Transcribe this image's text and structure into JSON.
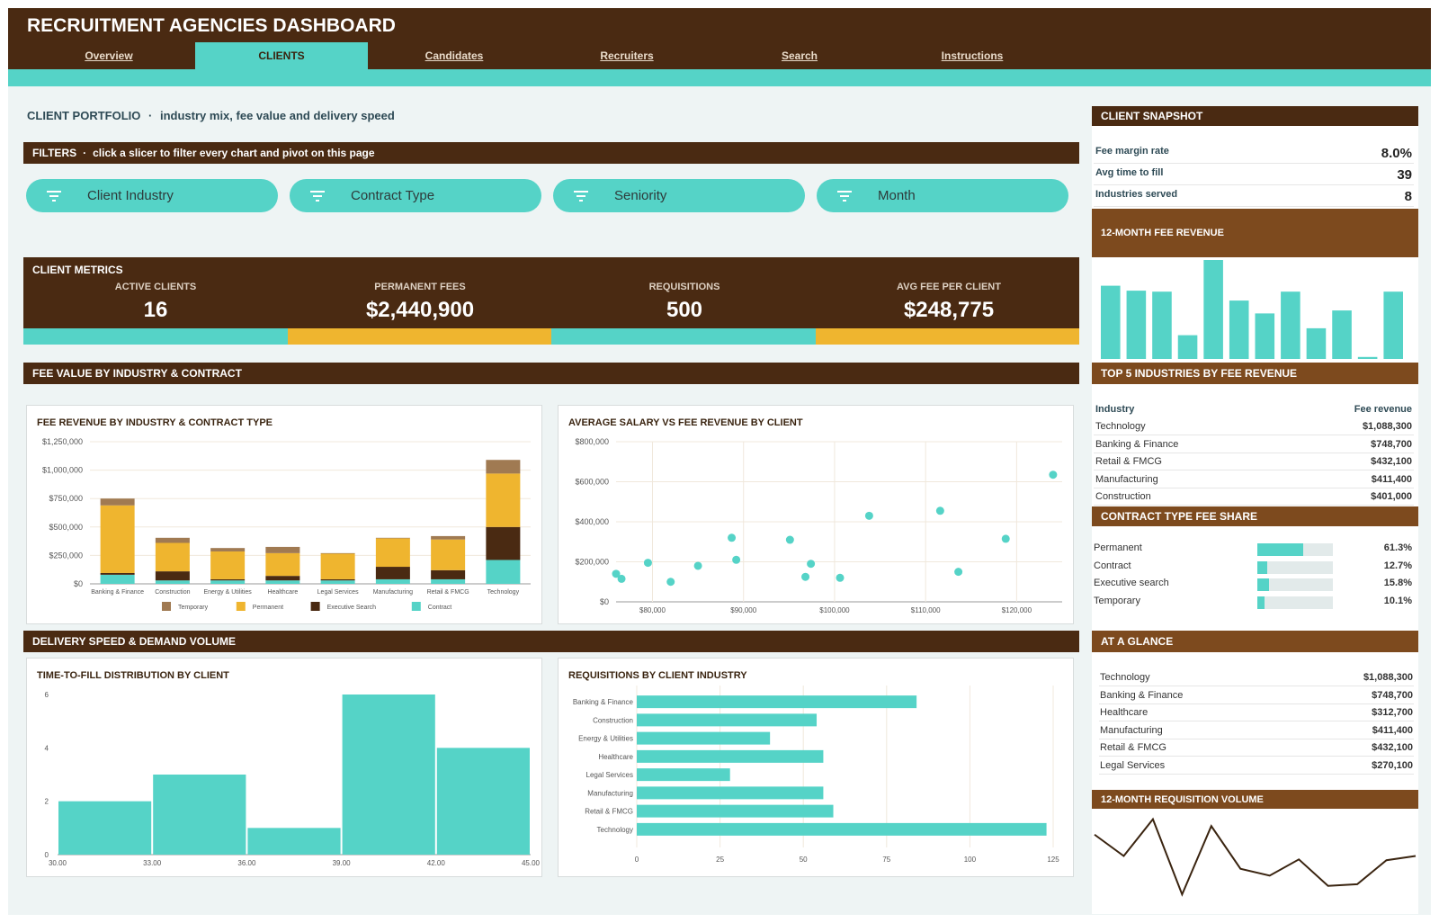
{
  "app_title": "RECRUITMENT AGENCIES DASHBOARD",
  "tabs": [
    {
      "label": "Overview",
      "active": false
    },
    {
      "label": "CLIENTS",
      "active": true
    },
    {
      "label": "Candidates",
      "active": false
    },
    {
      "label": "Recruiters",
      "active": false
    },
    {
      "label": "Search",
      "active": false
    },
    {
      "label": "Instructions",
      "active": false
    }
  ],
  "page_heading": {
    "title": "CLIENT PORTFOLIO",
    "sep": "·",
    "subtitle": "industry mix, fee value and delivery speed"
  },
  "filters": {
    "title": "FILTERS",
    "sep": "·",
    "hint": "click a slicer to filter every chart and pivot on this page",
    "slicers": [
      "Client Industry",
      "Contract Type",
      "Seniority",
      "Month"
    ]
  },
  "metrics": {
    "title": "CLIENT METRICS",
    "items": [
      {
        "label": "ACTIVE CLIENTS",
        "value": "16"
      },
      {
        "label": "PERMANENT FEES",
        "value": "$2,440,900"
      },
      {
        "label": "REQUISITIONS",
        "value": "500"
      },
      {
        "label": "AVG FEE PER CLIENT",
        "value": "$248,775"
      }
    ]
  },
  "section_fee": "FEE VALUE BY INDUSTRY & CONTRACT",
  "section_delivery": "DELIVERY SPEED & DEMAND VOLUME",
  "colors": {
    "brown": "#4a2a12",
    "teal": "#55d3c7",
    "gold": "#efb52f",
    "tan": "#a07a52"
  },
  "chart_data": [
    {
      "type": "bar",
      "stacked": true,
      "title": "FEE REVENUE BY INDUSTRY & CONTRACT TYPE",
      "categories": [
        "Banking & Finance",
        "Construction",
        "Energy & Utilities",
        "Healthcare",
        "Legal Services",
        "Manufacturing",
        "Retail & FMCG",
        "Technology"
      ],
      "yticks": [
        "$0",
        "$250,000",
        "$500,000",
        "$750,000",
        "$1,000,000",
        "$1,250,000"
      ],
      "ylim": [
        0,
        1250000
      ],
      "series": [
        {
          "name": "Contract",
          "color": "#55d3c7",
          "values": [
            80000,
            30000,
            30000,
            30000,
            30000,
            40000,
            40000,
            210000
          ]
        },
        {
          "name": "Executive Search",
          "color": "#4a2a12",
          "values": [
            15000,
            80000,
            10000,
            40000,
            10000,
            110000,
            80000,
            290000
          ]
        },
        {
          "name": "Permanent",
          "color": "#efb52f",
          "values": [
            595000,
            250000,
            245000,
            200000,
            225000,
            250000,
            270000,
            470000
          ]
        },
        {
          "name": "Temporary",
          "color": "#a07a52",
          "values": [
            60000,
            45000,
            30000,
            55000,
            5000,
            5000,
            30000,
            120000
          ]
        }
      ],
      "legend": [
        "Temporary",
        "Permanent",
        "Executive Search",
        "Contract"
      ]
    },
    {
      "type": "scatter",
      "title": "AVERAGE SALARY VS FEE REVENUE BY CLIENT",
      "xticks": [
        "$80,000",
        "$90,000",
        "$100,000",
        "$110,000",
        "$120,000"
      ],
      "xlim": [
        76000,
        125000
      ],
      "yticks": [
        "$0",
        "$200,000",
        "$400,000",
        "$600,000",
        "$800,000"
      ],
      "ylim": [
        0,
        800000
      ],
      "points": [
        [
          76000,
          140000
        ],
        [
          76600,
          115000
        ],
        [
          79500,
          195000
        ],
        [
          82000,
          100000
        ],
        [
          85000,
          180000
        ],
        [
          88700,
          320000
        ],
        [
          89200,
          210000
        ],
        [
          95100,
          310000
        ],
        [
          96800,
          125000
        ],
        [
          97400,
          190000
        ],
        [
          100600,
          120000
        ],
        [
          103800,
          430000
        ],
        [
          111600,
          455000
        ],
        [
          113600,
          150000
        ],
        [
          118800,
          315000
        ],
        [
          124000,
          635000
        ]
      ]
    },
    {
      "type": "bar",
      "title": "TIME-TO-FILL DISTRIBUTION BY CLIENT",
      "categories": [
        "30.00-33.00",
        "33.00-36.00",
        "36.00-39.00",
        "39.00-42.00",
        "42.00-45.00"
      ],
      "xticks": [
        "30.00",
        "33.00",
        "36.00",
        "39.00",
        "42.00",
        "45.00"
      ],
      "yticks": [
        "0",
        "2",
        "4",
        "6"
      ],
      "ylim": [
        0,
        6
      ],
      "values": [
        2,
        3,
        1,
        6,
        4
      ]
    },
    {
      "type": "bar",
      "orientation": "horizontal",
      "title": "REQUISITIONS BY CLIENT INDUSTRY",
      "categories": [
        "Banking & Finance",
        "Construction",
        "Energy & Utilities",
        "Healthcare",
        "Legal Services",
        "Manufacturing",
        "Retail & FMCG",
        "Technology"
      ],
      "values": [
        84,
        54,
        40,
        56,
        28,
        56,
        59,
        123
      ],
      "xticks": [
        "0",
        "25",
        "50",
        "75",
        "100",
        "125"
      ],
      "xlim": [
        0,
        125
      ]
    },
    {
      "type": "bar",
      "title": "12-MONTH FEE REVENUE",
      "values": [
        0.74,
        0.69,
        0.68,
        0.24,
        1.0,
        0.59,
        0.46,
        0.68,
        0.31,
        0.49,
        0.02,
        0.68
      ]
    },
    {
      "type": "line",
      "title": "12-MONTH REQUISITION VOLUME",
      "values": [
        0.75,
        0.5,
        0.93,
        0.05,
        0.85,
        0.35,
        0.27,
        0.46,
        0.15,
        0.17,
        0.45,
        0.5
      ]
    }
  ],
  "snapshot": {
    "title": "CLIENT SNAPSHOT",
    "rows": [
      {
        "label": "Fee margin rate",
        "value": "8.0%"
      },
      {
        "label": "Avg time to fill",
        "value": "39"
      },
      {
        "label": "Industries served",
        "value": "8"
      }
    ]
  },
  "top5": {
    "title": "TOP 5 INDUSTRIES BY FEE REVENUE",
    "col1": "Industry",
    "col2": "Fee revenue",
    "rows": [
      {
        "label": "Technology",
        "value": "$1,088,300"
      },
      {
        "label": "Banking & Finance",
        "value": "$748,700"
      },
      {
        "label": "Retail & FMCG",
        "value": "$432,100"
      },
      {
        "label": "Manufacturing",
        "value": "$411,400"
      },
      {
        "label": "Construction",
        "value": "$401,000"
      }
    ]
  },
  "contract_share": {
    "title": "CONTRACT TYPE FEE SHARE",
    "rows": [
      {
        "label": "Permanent",
        "pct": "61.3%",
        "frac": 0.613
      },
      {
        "label": "Contract",
        "pct": "12.7%",
        "frac": 0.127
      },
      {
        "label": "Executive search",
        "pct": "15.8%",
        "frac": 0.158
      },
      {
        "label": "Temporary",
        "pct": "10.1%",
        "frac": 0.101
      }
    ]
  },
  "glance": {
    "title": "AT A GLANCE",
    "rows": [
      {
        "label": "Technology",
        "value": "$1,088,300"
      },
      {
        "label": "Banking & Finance",
        "value": "$748,700"
      },
      {
        "label": "Healthcare",
        "value": "$312,700"
      },
      {
        "label": "Manufacturing",
        "value": "$411,400"
      },
      {
        "label": "Retail & FMCG",
        "value": "$432,100"
      },
      {
        "label": "Legal Services",
        "value": "$270,100"
      }
    ]
  }
}
